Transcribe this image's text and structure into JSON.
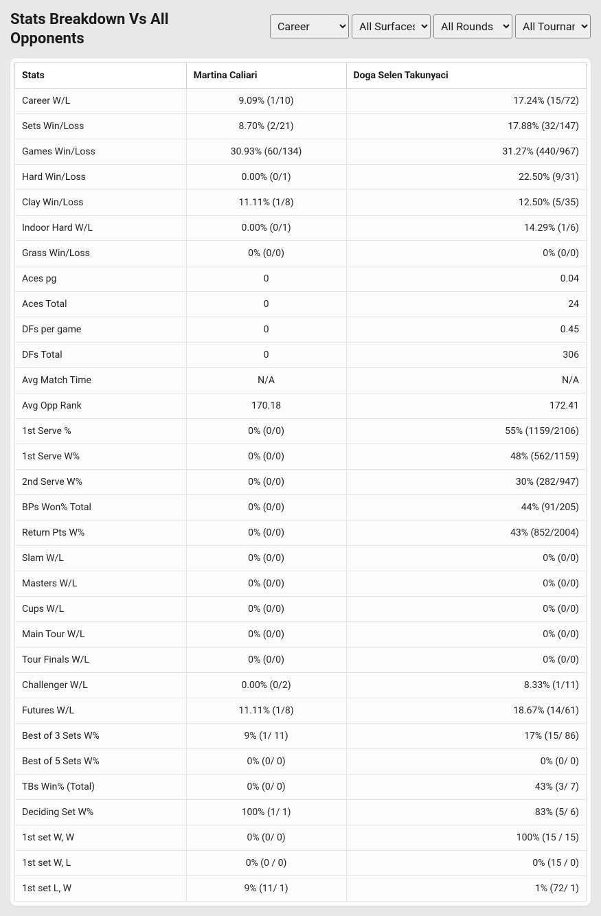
{
  "title": "Stats Breakdown Vs All Opponents",
  "filters": {
    "career": {
      "selected": "Career",
      "options": [
        "Career"
      ]
    },
    "surface": {
      "selected": "All Surfaces",
      "options": [
        "All Surfaces"
      ]
    },
    "rounds": {
      "selected": "All Rounds",
      "options": [
        "All Rounds"
      ]
    },
    "tournaments": {
      "selected": "All Tournaments",
      "options": [
        "All Tournaments"
      ]
    }
  },
  "columns": {
    "stats": "Stats",
    "player1": "Martina Caliari",
    "player2": "Doga Selen Takunyaci"
  },
  "rows": [
    {
      "label": "Career W/L",
      "p1": "9.09% (1/10)",
      "p2": "17.24% (15/72)"
    },
    {
      "label": "Sets Win/Loss",
      "p1": "8.70% (2/21)",
      "p2": "17.88% (32/147)"
    },
    {
      "label": "Games Win/Loss",
      "p1": "30.93% (60/134)",
      "p2": "31.27% (440/967)"
    },
    {
      "label": "Hard Win/Loss",
      "p1": "0.00% (0/1)",
      "p2": "22.50% (9/31)"
    },
    {
      "label": "Clay Win/Loss",
      "p1": "11.11% (1/8)",
      "p2": "12.50% (5/35)"
    },
    {
      "label": "Indoor Hard W/L",
      "p1": "0.00% (0/1)",
      "p2": "14.29% (1/6)"
    },
    {
      "label": "Grass Win/Loss",
      "p1": "0% (0/0)",
      "p2": "0% (0/0)"
    },
    {
      "label": "Aces pg",
      "p1": "0",
      "p2": "0.04"
    },
    {
      "label": "Aces Total",
      "p1": "0",
      "p2": "24"
    },
    {
      "label": "DFs per game",
      "p1": "0",
      "p2": "0.45"
    },
    {
      "label": "DFs Total",
      "p1": "0",
      "p2": "306"
    },
    {
      "label": "Avg Match Time",
      "p1": "N/A",
      "p2": "N/A"
    },
    {
      "label": "Avg Opp Rank",
      "p1": "170.18",
      "p2": "172.41"
    },
    {
      "label": "1st Serve %",
      "p1": "0% (0/0)",
      "p2": "55% (1159/2106)"
    },
    {
      "label": "1st Serve W%",
      "p1": "0% (0/0)",
      "p2": "48% (562/1159)"
    },
    {
      "label": "2nd Serve W%",
      "p1": "0% (0/0)",
      "p2": "30% (282/947)"
    },
    {
      "label": "BPs Won% Total",
      "p1": "0% (0/0)",
      "p2": "44% (91/205)"
    },
    {
      "label": "Return Pts W%",
      "p1": "0% (0/0)",
      "p2": "43% (852/2004)"
    },
    {
      "label": "Slam W/L",
      "p1": "0% (0/0)",
      "p2": "0% (0/0)"
    },
    {
      "label": "Masters W/L",
      "p1": "0% (0/0)",
      "p2": "0% (0/0)"
    },
    {
      "label": "Cups W/L",
      "p1": "0% (0/0)",
      "p2": "0% (0/0)"
    },
    {
      "label": "Main Tour W/L",
      "p1": "0% (0/0)",
      "p2": "0% (0/0)"
    },
    {
      "label": "Tour Finals W/L",
      "p1": "0% (0/0)",
      "p2": "0% (0/0)"
    },
    {
      "label": "Challenger W/L",
      "p1": "0.00% (0/2)",
      "p2": "8.33% (1/11)"
    },
    {
      "label": "Futures W/L",
      "p1": "11.11% (1/8)",
      "p2": "18.67% (14/61)"
    },
    {
      "label": "Best of 3 Sets W%",
      "p1": "9% (1/ 11)",
      "p2": "17% (15/ 86)"
    },
    {
      "label": "Best of 5 Sets W%",
      "p1": "0% (0/ 0)",
      "p2": "0% (0/ 0)"
    },
    {
      "label": "TBs Win% (Total)",
      "p1": "0% (0/ 0)",
      "p2": "43% (3/ 7)"
    },
    {
      "label": "Deciding Set W%",
      "p1": "100% (1/ 1)",
      "p2": "83% (5/ 6)"
    },
    {
      "label": "1st set W, W",
      "p1": "0% (0/ 0)",
      "p2": "100% (15 / 15)"
    },
    {
      "label": "1st set W, L",
      "p1": "0% (0 / 0)",
      "p2": "0% (15 / 0)"
    },
    {
      "label": "1st set L, W",
      "p1": "9% (11/ 1)",
      "p2": "1% (72/ 1)"
    }
  ],
  "colors": {
    "page_bg": "#e8e8e8",
    "card_bg": "#fcfcfc",
    "header_border": "#d0d0d0",
    "row_border": "#e4e4e4",
    "text": "#1a1a1a"
  }
}
